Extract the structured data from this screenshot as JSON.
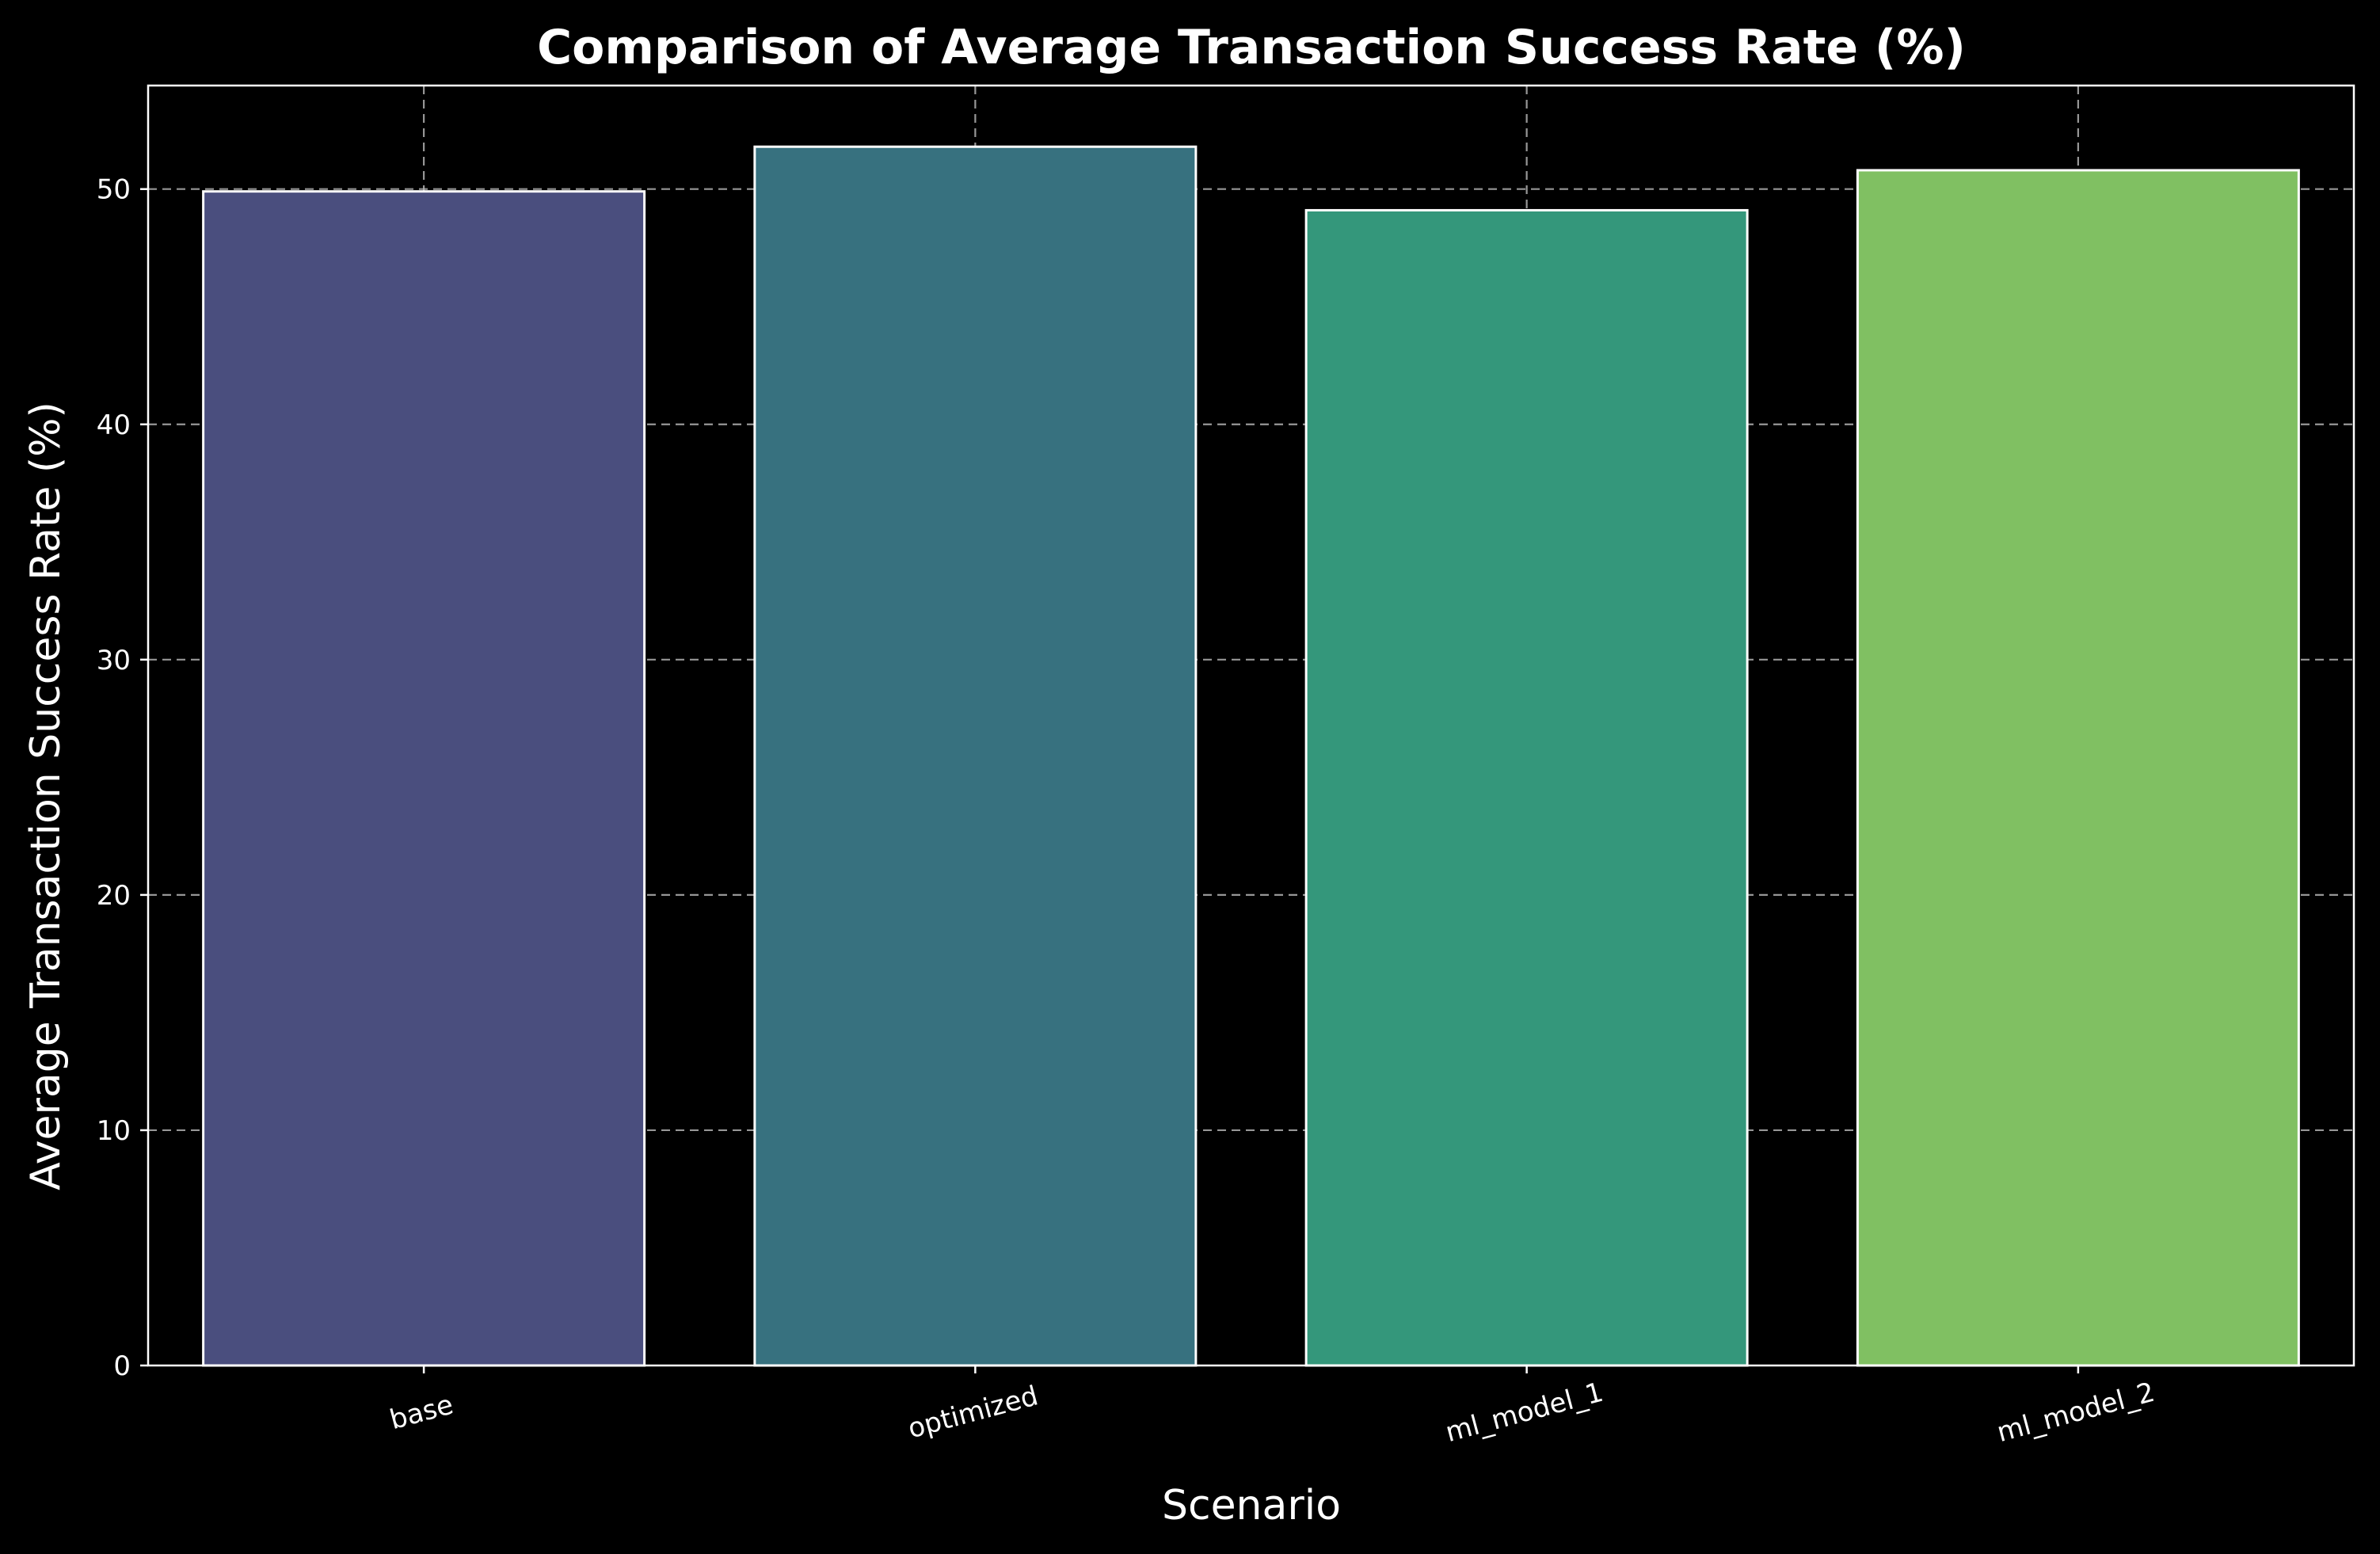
{
  "chart_data": {
    "type": "bar",
    "title": "Comparison of Average Transaction Success Rate (%)",
    "xlabel": "Scenario",
    "ylabel": "Average Transaction Success Rate (%)",
    "categories": [
      "base",
      "optimized",
      "ml_model_1",
      "ml_model_2"
    ],
    "values": [
      49.9,
      51.8,
      49.1,
      50.8
    ],
    "colors": [
      "#4a4e7e",
      "#37717f",
      "#34977b",
      "#80c062"
    ],
    "ylim": [
      0,
      54.4
    ],
    "yticks": [
      0,
      10,
      20,
      30,
      40,
      50
    ],
    "grid": true,
    "background": "#000000",
    "x_tick_rotation_deg": 15
  }
}
